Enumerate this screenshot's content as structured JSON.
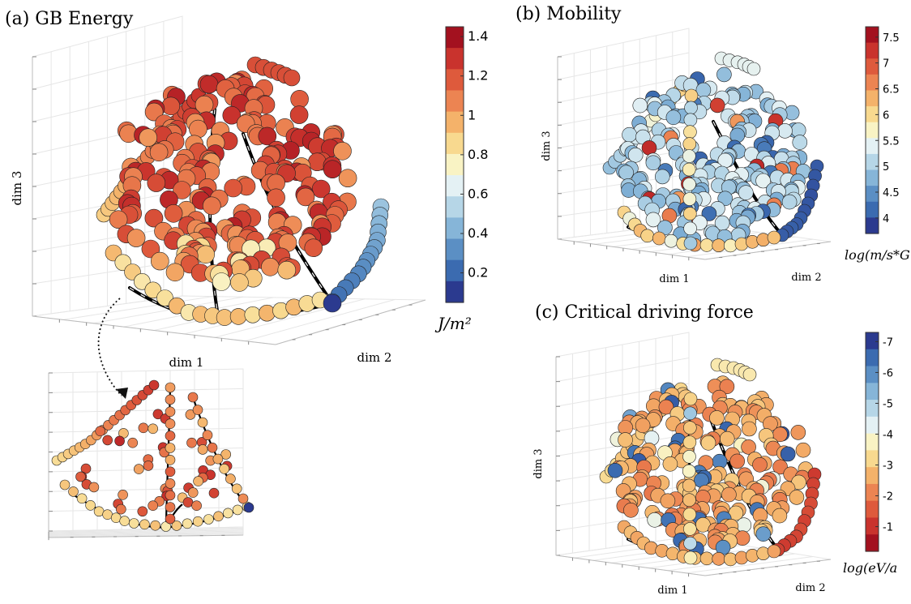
{
  "figure": {
    "colors": {
      "scale": [
        "#2b3a8f",
        "#3b6bb0",
        "#5b8fc4",
        "#86b5d8",
        "#b6d6e7",
        "#e4f1f4",
        "#f9f3c4",
        "#f8d98f",
        "#f4b26a",
        "#ec8452",
        "#de5a3c",
        "#c9332d",
        "#a3111f"
      ],
      "path": "#000000",
      "grid": "#e6e6e6",
      "marker_edge": "#222222"
    }
  },
  "chart_data": [
    {
      "id": "a",
      "type": "scatter",
      "title": "(a) GB Energy",
      "xlabel": "dim 1",
      "ylabel": "dim 2",
      "zlabel": "dim 3",
      "colorbar": {
        "unit": "J/m²",
        "ticks": [
          "0.2",
          "0.4",
          "0.6",
          "0.8",
          "1",
          "1.2",
          "1.4"
        ],
        "range": [
          0.05,
          1.45
        ],
        "scale": "linear"
      },
      "summary": {
        "min": 0.1,
        "max": 1.4,
        "dominant": "high (1.0–1.4)"
      }
    },
    {
      "id": "a-inset",
      "type": "scatter",
      "title": "",
      "colorbar": {
        "range": [
          0.05,
          1.45
        ]
      }
    },
    {
      "id": "b",
      "type": "scatter",
      "title": "(b) Mobility",
      "xlabel": "dim 1",
      "ylabel": "dim 2",
      "zlabel": "dim 3",
      "colorbar": {
        "unit": "log(m/s*G",
        "ticks": [
          "4",
          "4.5",
          "5",
          "5.5",
          "6",
          "6.5",
          "7",
          "7.5"
        ],
        "range": [
          3.7,
          7.7
        ],
        "scale": "log"
      },
      "summary": {
        "min": 3.7,
        "max": 7.6,
        "dominant": "mid-low (4.5–5.5)"
      }
    },
    {
      "id": "c",
      "type": "scatter",
      "title": "(c) Critical driving force",
      "xlabel": "dim 1",
      "ylabel": "dim 2",
      "zlabel": "dim 3",
      "colorbar": {
        "unit": "log(eV/a",
        "ticks": [
          "-1",
          "-2",
          "-3",
          "-4",
          "-5",
          "-6",
          "-7"
        ],
        "range": [
          -7.3,
          -0.2
        ],
        "scale": "log"
      },
      "summary": {
        "min": -7.2,
        "max": -0.5,
        "dominant": "mid (-2 to -3)"
      }
    }
  ]
}
